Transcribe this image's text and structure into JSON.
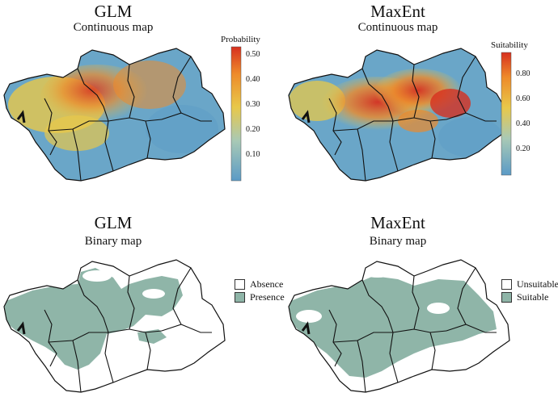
{
  "panels": [
    {
      "id": "glm-continuous",
      "title": "GLM",
      "subtitle": "Continuous map"
    },
    {
      "id": "maxent-continuous",
      "title": "MaxEnt",
      "subtitle": "Continuous map"
    },
    {
      "id": "glm-binary",
      "title": "GLM",
      "subtitle": "Binary map"
    },
    {
      "id": "maxent-binary",
      "title": "MaxEnt",
      "subtitle": "Binary map"
    }
  ],
  "legends": {
    "glm_continuous": {
      "title": "Probability",
      "ticks": [
        "0.10",
        "0.20",
        "0.30",
        "0.40",
        "0.50"
      ]
    },
    "maxent_continuous": {
      "title": "Suitability",
      "ticks": [
        "0.20",
        "0.40",
        "0.60",
        "0.80"
      ]
    },
    "glm_binary": {
      "items": [
        {
          "label": "Absence",
          "color": "#ffffff"
        },
        {
          "label": "Presence",
          "color": "#8fb5a8"
        }
      ]
    },
    "maxent_binary": {
      "items": [
        {
          "label": "Unsuitable",
          "color": "#ffffff"
        },
        {
          "label": "Suitable",
          "color": "#8fb5a8"
        }
      ]
    }
  },
  "colors": {
    "low": "#5b9bc6",
    "mid": "#e8c84a",
    "high": "#d7301f",
    "presence": "#8fb5a8",
    "outline": "#111111"
  }
}
